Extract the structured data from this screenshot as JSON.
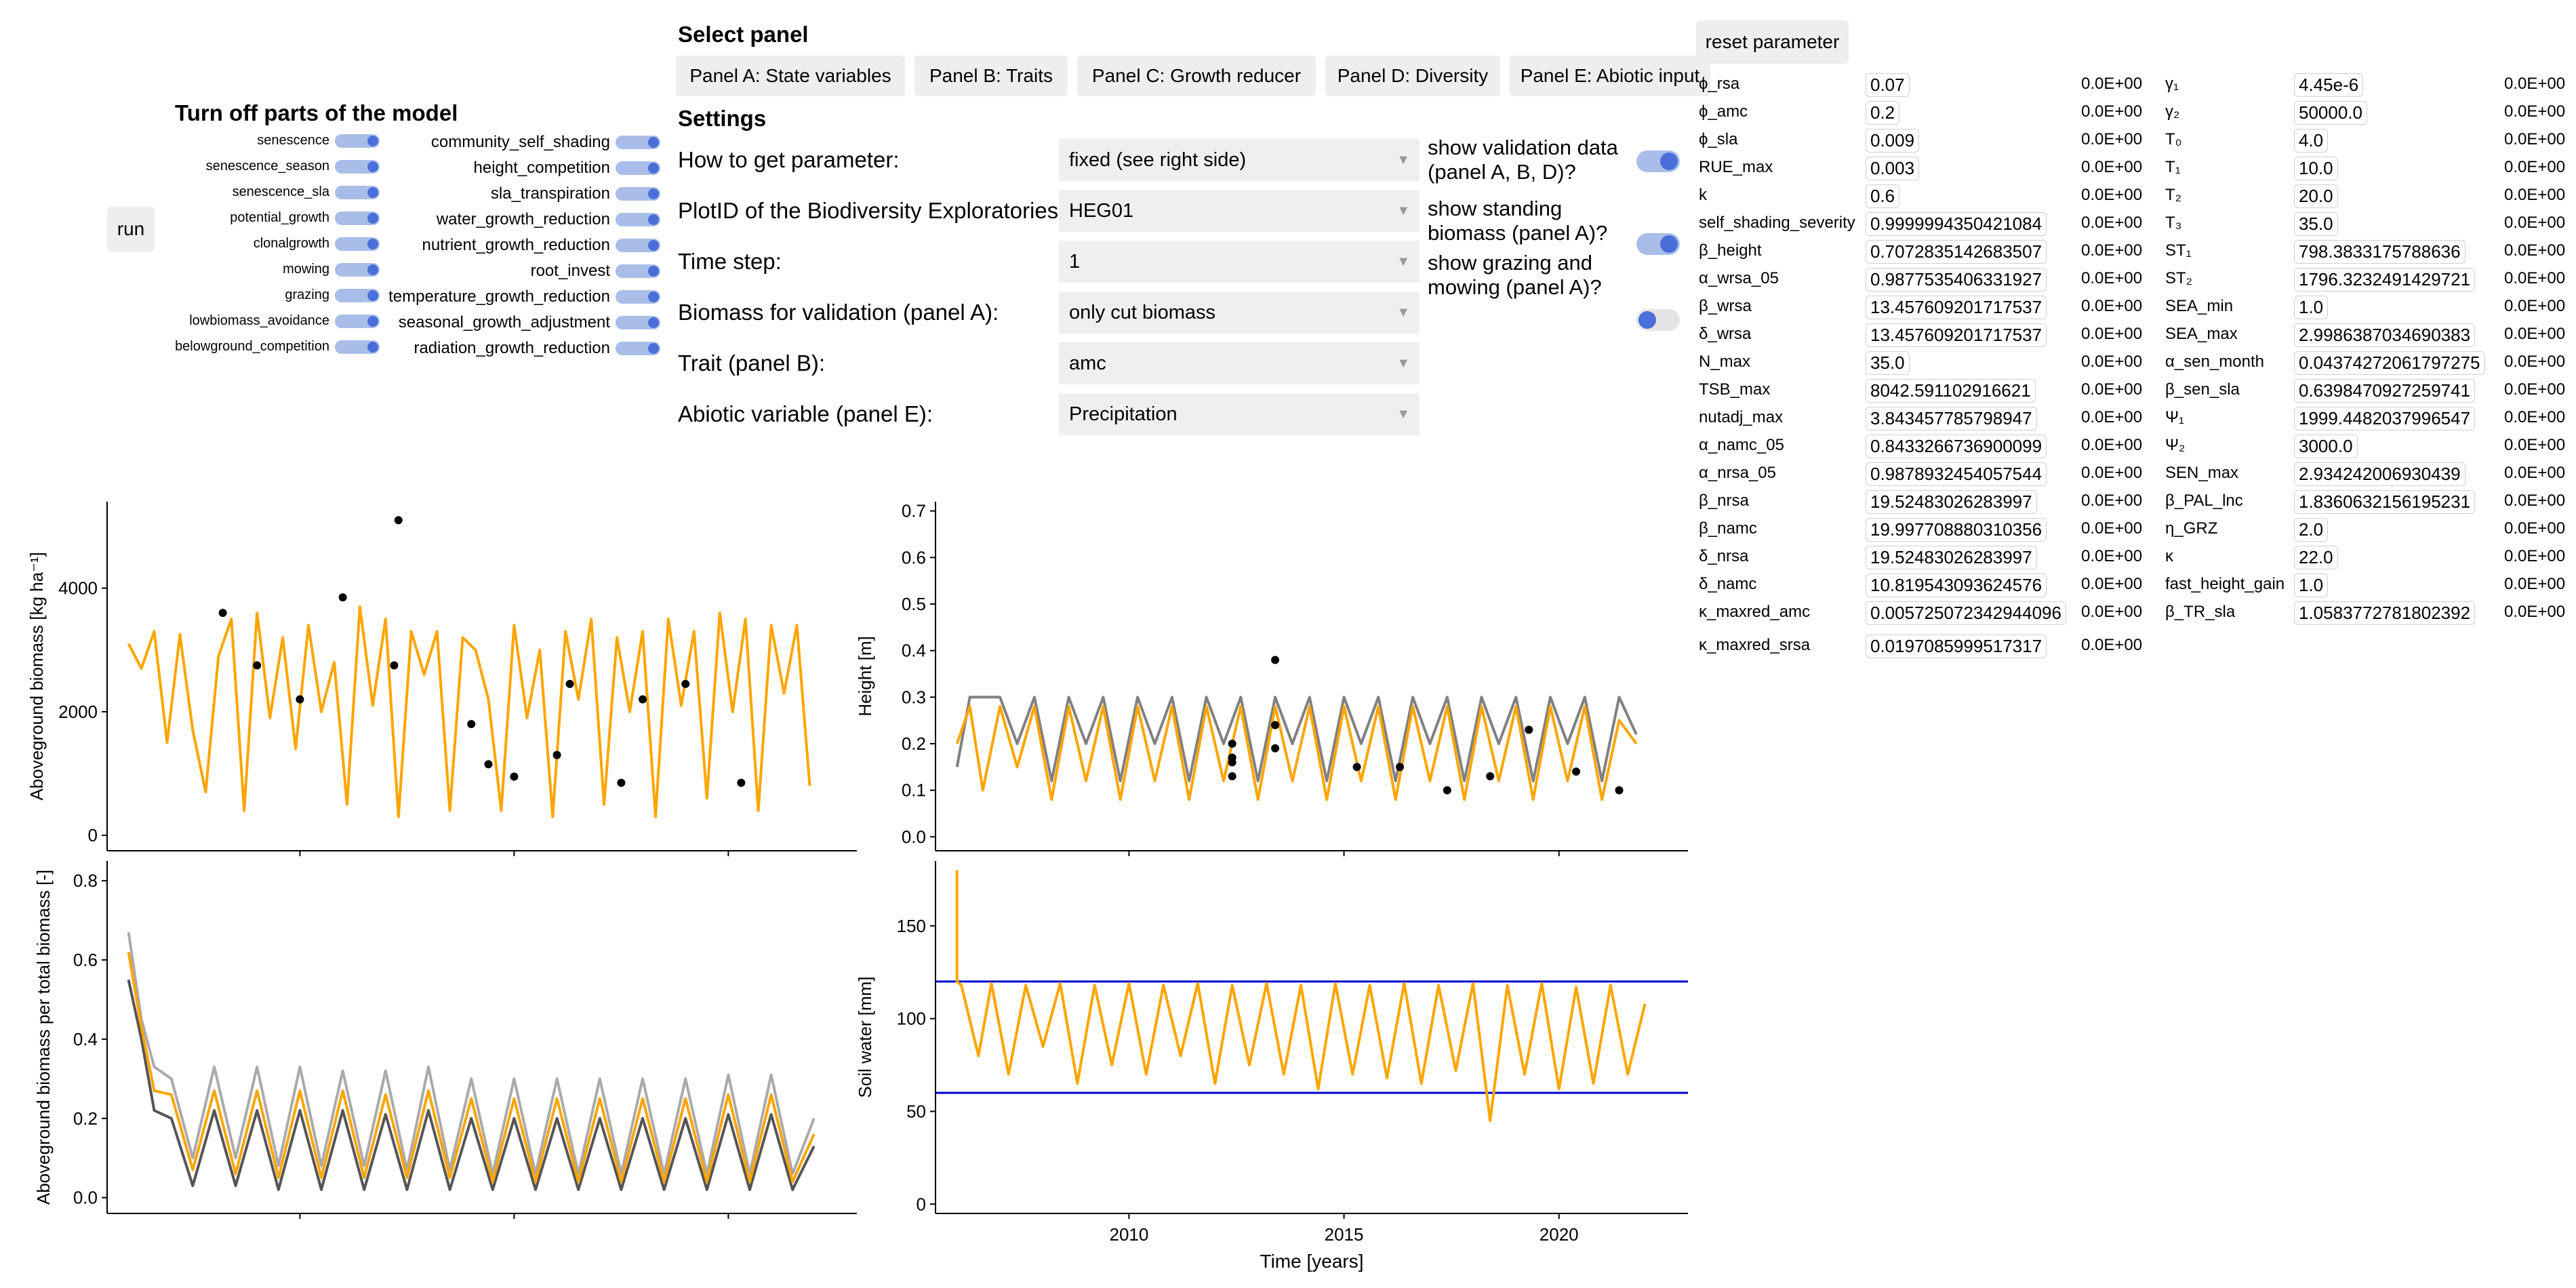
{
  "run_label": "run",
  "toggles": {
    "title": "Turn off parts of the model",
    "left": [
      "senescence",
      "senescence_season",
      "senescence_sla",
      "potential_growth",
      "clonalgrowth",
      "mowing",
      "grazing",
      "lowbiomass_avoidance",
      "belowground_competition"
    ],
    "right": [
      "community_self_shading",
      "height_competition",
      "sla_transpiration",
      "water_growth_reduction",
      "nutrient_growth_reduction",
      "root_invest",
      "temperature_growth_reduction",
      "seasonal_growth_adjustment",
      "radiation_growth_reduction"
    ]
  },
  "panel_select": {
    "title": "Select panel",
    "buttons": [
      "Panel A: State variables",
      "Panel B: Traits",
      "Panel C: Growth reducer",
      "Panel D: Diversity",
      "Panel E: Abiotic input"
    ]
  },
  "settings": {
    "title": "Settings",
    "rows": [
      {
        "label": "How to get parameter:",
        "value": "fixed (see right side)"
      },
      {
        "label": "PlotID of the Biodiversity Exploratories:",
        "value": "HEG01"
      },
      {
        "label": "Time step:",
        "value": "1"
      },
      {
        "label": "Biomass for validation (panel A):",
        "value": "only cut biomass"
      },
      {
        "label": "Trait (panel B):",
        "value": "amc"
      },
      {
        "label": "Abiotic variable (panel E):",
        "value": "Precipitation"
      }
    ],
    "switches": [
      {
        "label": "show validation data (panel A, B, D)?",
        "on": true
      },
      {
        "label": "show standing biomass (panel A)?",
        "on": true
      },
      {
        "label": "show grazing and mowing (panel A)?",
        "on": false
      }
    ]
  },
  "reset_label": "reset parameter",
  "params_left": [
    {
      "name": "ϕ_rsa",
      "value": "0.07",
      "std": "0.0E+00"
    },
    {
      "name": "ϕ_amc",
      "value": "0.2",
      "std": "0.0E+00"
    },
    {
      "name": "ϕ_sla",
      "value": "0.009",
      "std": "0.0E+00"
    },
    {
      "name": "RUE_max",
      "value": "0.003",
      "std": "0.0E+00"
    },
    {
      "name": "k",
      "value": "0.6",
      "std": "0.0E+00"
    },
    {
      "name": "self_shading_severity",
      "value": "0.9999994350421084",
      "std": "0.0E+00"
    },
    {
      "name": "β_height",
      "value": "0.7072835142683507",
      "std": "0.0E+00"
    },
    {
      "name": "α_wrsa_05",
      "value": "0.9877535406331927",
      "std": "0.0E+00"
    },
    {
      "name": "β_wrsa",
      "value": "13.457609201717537",
      "std": "0.0E+00"
    },
    {
      "name": "δ_wrsa",
      "value": "13.457609201717537",
      "std": "0.0E+00"
    },
    {
      "name": "N_max",
      "value": "35.0",
      "std": "0.0E+00"
    },
    {
      "name": "TSB_max",
      "value": "8042.591102916621",
      "std": "0.0E+00"
    },
    {
      "name": "nutadj_max",
      "value": "3.843457785798947",
      "std": "0.0E+00"
    },
    {
      "name": "α_namc_05",
      "value": "0.8433266736900099",
      "std": "0.0E+00"
    },
    {
      "name": "α_nrsa_05",
      "value": "0.9878932454057544",
      "std": "0.0E+00"
    },
    {
      "name": "β_nrsa",
      "value": "19.52483026283997",
      "std": "0.0E+00"
    },
    {
      "name": "β_namc",
      "value": "19.997708880310356",
      "std": "0.0E+00"
    },
    {
      "name": "δ_nrsa",
      "value": "19.52483026283997",
      "std": "0.0E+00"
    },
    {
      "name": "δ_namc",
      "value": "10.819543093624576",
      "std": "0.0E+00"
    },
    {
      "name": "κ_maxred_amc",
      "value": "0.005725072342944096",
      "std": "0.0E+00"
    },
    {
      "name": "κ_maxred_srsa",
      "value": "0.0197085999517317",
      "std": "0.0E+00"
    }
  ],
  "params_right": [
    {
      "name": "γ₁",
      "value": "4.45e-6",
      "std": "0.0E+00"
    },
    {
      "name": "γ₂",
      "value": "50000.0",
      "std": "0.0E+00"
    },
    {
      "name": "T₀",
      "value": "4.0",
      "std": "0.0E+00"
    },
    {
      "name": "T₁",
      "value": "10.0",
      "std": "0.0E+00"
    },
    {
      "name": "T₂",
      "value": "20.0",
      "std": "0.0E+00"
    },
    {
      "name": "T₃",
      "value": "35.0",
      "std": "0.0E+00"
    },
    {
      "name": "ST₁",
      "value": "798.3833175788636",
      "std": "0.0E+00"
    },
    {
      "name": "ST₂",
      "value": "1796.3232491429721",
      "std": "0.0E+00"
    },
    {
      "name": "SEA_min",
      "value": "1.0",
      "std": "0.0E+00"
    },
    {
      "name": "SEA_max",
      "value": "2.9986387034690383",
      "std": "0.0E+00"
    },
    {
      "name": "α_sen_month",
      "value": "0.04374272061797275",
      "std": "0.0E+00"
    },
    {
      "name": "β_sen_sla",
      "value": "0.6398470927259741",
      "std": "0.0E+00"
    },
    {
      "name": "Ψ₁",
      "value": "1999.4482037996547",
      "std": "0.0E+00"
    },
    {
      "name": "Ψ₂",
      "value": "3000.0",
      "std": "0.0E+00"
    },
    {
      "name": "SEN_max",
      "value": "2.934242006930439",
      "std": "0.0E+00"
    },
    {
      "name": "β_PAL_lnc",
      "value": "1.8360632156195231",
      "std": "0.0E+00"
    },
    {
      "name": "η_GRZ",
      "value": "2.0",
      "std": "0.0E+00"
    },
    {
      "name": "κ",
      "value": "22.0",
      "std": "0.0E+00"
    },
    {
      "name": "fast_height_gain",
      "value": "1.0",
      "std": "0.0E+00"
    },
    {
      "name": "β_TR_sla",
      "value": "1.0583772781802392",
      "std": "0.0E+00"
    }
  ],
  "chart_data": [
    {
      "type": "line",
      "title": "",
      "xlabel": "",
      "ylabel": "Aboveground biomass [kg ha⁻¹]",
      "ylim": [
        -250,
        5400
      ],
      "yticks": [
        "0",
        "2000",
        "4000"
      ],
      "xlim": [
        2005.5,
        2023.0
      ],
      "series": [
        {
          "color": "#ffa500",
          "x": [
            2006.0,
            2006.3,
            2006.6,
            2006.9,
            2007.2,
            2007.5,
            2007.8,
            2008.1,
            2008.4,
            2008.7,
            2009.0,
            2009.3,
            2009.6,
            2009.9,
            2010.2,
            2010.5,
            2010.8,
            2011.1,
            2011.4,
            2011.7,
            2012.0,
            2012.3,
            2012.6,
            2012.9,
            2013.2,
            2013.5,
            2013.8,
            2014.1,
            2014.4,
            2014.7,
            2015.0,
            2015.3,
            2015.6,
            2015.9,
            2016.2,
            2016.5,
            2016.8,
            2017.1,
            2017.4,
            2017.7,
            2018.0,
            2018.3,
            2018.6,
            2018.9,
            2019.2,
            2019.5,
            2019.8,
            2020.1,
            2020.4,
            2020.7,
            2021.0,
            2021.3,
            2021.6,
            2021.9
          ],
          "y": [
            3100,
            2700,
            3300,
            1500,
            3250,
            1700,
            700,
            2900,
            3500,
            400,
            3600,
            1900,
            3200,
            1400,
            3400,
            2000,
            2800,
            500,
            3700,
            2100,
            3500,
            300,
            3300,
            2600,
            3300,
            400,
            3200,
            3000,
            2200,
            400,
            3400,
            1900,
            3000,
            300,
            3300,
            2200,
            3500,
            500,
            3200,
            2000,
            3300,
            300,
            3500,
            2100,
            3300,
            600,
            3600,
            2000,
            3500,
            400,
            3400,
            2300,
            3400,
            800
          ]
        }
      ],
      "points": {
        "color": "#000000",
        "x": [
          2008.2,
          2009.0,
          2010.0,
          2011.0,
          2012.2,
          2012.3,
          2014.0,
          2014.4,
          2015.0,
          2016.0,
          2016.3,
          2017.5,
          2018.0,
          2019.0,
          2020.3
        ],
        "y": [
          3600,
          2750,
          2200,
          3850,
          2750,
          5100,
          1800,
          1150,
          950,
          1300,
          2450,
          850,
          2200,
          2450,
          850
        ]
      }
    },
    {
      "type": "line",
      "xlabel": "",
      "ylabel": "Height [m]",
      "ylim": [
        -0.03,
        0.72
      ],
      "yticks": [
        "0.0",
        "0.1",
        "0.2",
        "0.3",
        "0.4",
        "0.5",
        "0.6",
        "0.7"
      ],
      "xlim": [
        2005.5,
        2023.0
      ],
      "series": [
        {
          "color": "#808080",
          "x": [
            2006.0,
            2006.3,
            2006.6,
            2007.0,
            2007.4,
            2007.8,
            2008.2,
            2008.6,
            2009.0,
            2009.4,
            2009.8,
            2010.2,
            2010.6,
            2011.0,
            2011.4,
            2011.8,
            2012.2,
            2012.6,
            2013.0,
            2013.4,
            2013.8,
            2014.2,
            2014.6,
            2015.0,
            2015.4,
            2015.8,
            2016.2,
            2016.6,
            2017.0,
            2017.4,
            2017.8,
            2018.2,
            2018.6,
            2019.0,
            2019.4,
            2019.8,
            2020.2,
            2020.6,
            2021.0,
            2021.4,
            2021.8
          ],
          "y": [
            0.15,
            0.3,
            0.3,
            0.3,
            0.2,
            0.3,
            0.12,
            0.3,
            0.2,
            0.3,
            0.12,
            0.3,
            0.2,
            0.3,
            0.12,
            0.3,
            0.2,
            0.3,
            0.12,
            0.3,
            0.2,
            0.3,
            0.12,
            0.3,
            0.2,
            0.3,
            0.12,
            0.3,
            0.2,
            0.3,
            0.12,
            0.3,
            0.2,
            0.3,
            0.12,
            0.3,
            0.2,
            0.3,
            0.12,
            0.3,
            0.22
          ]
        },
        {
          "color": "#ffa500",
          "x": [
            2006.0,
            2006.3,
            2006.6,
            2007.0,
            2007.4,
            2007.8,
            2008.2,
            2008.6,
            2009.0,
            2009.4,
            2009.8,
            2010.2,
            2010.6,
            2011.0,
            2011.4,
            2011.8,
            2012.2,
            2012.6,
            2013.0,
            2013.4,
            2013.8,
            2014.2,
            2014.6,
            2015.0,
            2015.4,
            2015.8,
            2016.2,
            2016.6,
            2017.0,
            2017.4,
            2017.8,
            2018.2,
            2018.6,
            2019.0,
            2019.4,
            2019.8,
            2020.2,
            2020.6,
            2021.0,
            2021.4,
            2021.8
          ],
          "y": [
            0.2,
            0.28,
            0.1,
            0.28,
            0.15,
            0.28,
            0.08,
            0.28,
            0.12,
            0.28,
            0.08,
            0.28,
            0.12,
            0.28,
            0.08,
            0.28,
            0.12,
            0.28,
            0.08,
            0.28,
            0.12,
            0.28,
            0.08,
            0.28,
            0.12,
            0.28,
            0.08,
            0.28,
            0.12,
            0.28,
            0.08,
            0.28,
            0.12,
            0.28,
            0.08,
            0.28,
            0.12,
            0.28,
            0.08,
            0.25,
            0.2
          ]
        }
      ],
      "points": {
        "color": "#000000",
        "x": [
          2012.4,
          2012.4,
          2012.4,
          2012.4,
          2013.4,
          2013.4,
          2013.4,
          2015.3,
          2016.3,
          2017.4,
          2018.4,
          2019.3,
          2020.4,
          2021.4
        ],
        "y": [
          0.2,
          0.17,
          0.16,
          0.13,
          0.38,
          0.24,
          0.19,
          0.15,
          0.15,
          0.1,
          0.13,
          0.23,
          0.14,
          0.1
        ]
      }
    },
    {
      "type": "line",
      "xlabel": "",
      "ylabel": "Aboveground biomass per total biomass [-]",
      "ylim": [
        -0.04,
        0.85
      ],
      "yticks": [
        "0.0",
        "0.2",
        "0.4",
        "0.6",
        "0.8"
      ],
      "xlim": [
        2005.5,
        2023.0
      ],
      "series": [
        {
          "color": "#aaaaaa",
          "x": [
            2006.0,
            2006.3,
            2006.6,
            2007.0,
            2007.5,
            2008.0,
            2008.5,
            2009.0,
            2009.5,
            2010.0,
            2010.5,
            2011.0,
            2011.5,
            2012.0,
            2012.5,
            2013.0,
            2013.5,
            2014.0,
            2014.5,
            2015.0,
            2015.5,
            2016.0,
            2016.5,
            2017.0,
            2017.5,
            2018.0,
            2018.5,
            2019.0,
            2019.5,
            2020.0,
            2020.5,
            2021.0,
            2021.5,
            2022.0
          ],
          "y": [
            0.67,
            0.45,
            0.33,
            0.3,
            0.1,
            0.33,
            0.1,
            0.33,
            0.08,
            0.33,
            0.08,
            0.32,
            0.08,
            0.32,
            0.07,
            0.33,
            0.07,
            0.3,
            0.06,
            0.3,
            0.06,
            0.3,
            0.06,
            0.3,
            0.06,
            0.3,
            0.06,
            0.3,
            0.06,
            0.31,
            0.06,
            0.31,
            0.06,
            0.2
          ]
        },
        {
          "color": "#555555",
          "x": [
            2006.0,
            2006.3,
            2006.6,
            2007.0,
            2007.5,
            2008.0,
            2008.5,
            2009.0,
            2009.5,
            2010.0,
            2010.5,
            2011.0,
            2011.5,
            2012.0,
            2012.5,
            2013.0,
            2013.5,
            2014.0,
            2014.5,
            2015.0,
            2015.5,
            2016.0,
            2016.5,
            2017.0,
            2017.5,
            2018.0,
            2018.5,
            2019.0,
            2019.5,
            2020.0,
            2020.5,
            2021.0,
            2021.5,
            2022.0
          ],
          "y": [
            0.55,
            0.4,
            0.22,
            0.2,
            0.03,
            0.22,
            0.03,
            0.22,
            0.02,
            0.22,
            0.02,
            0.22,
            0.02,
            0.21,
            0.02,
            0.22,
            0.02,
            0.2,
            0.02,
            0.2,
            0.02,
            0.2,
            0.02,
            0.2,
            0.02,
            0.2,
            0.02,
            0.2,
            0.02,
            0.21,
            0.02,
            0.21,
            0.02,
            0.13
          ]
        },
        {
          "color": "#ffa500",
          "x": [
            2006.0,
            2006.3,
            2006.6,
            2007.0,
            2007.5,
            2008.0,
            2008.5,
            2009.0,
            2009.5,
            2010.0,
            2010.5,
            2011.0,
            2011.5,
            2012.0,
            2012.5,
            2013.0,
            2013.5,
            2014.0,
            2014.5,
            2015.0,
            2015.5,
            2016.0,
            2016.5,
            2017.0,
            2017.5,
            2018.0,
            2018.5,
            2019.0,
            2019.5,
            2020.0,
            2020.5,
            2021.0,
            2021.5,
            2022.0
          ],
          "y": [
            0.62,
            0.43,
            0.27,
            0.26,
            0.07,
            0.27,
            0.06,
            0.27,
            0.05,
            0.27,
            0.05,
            0.27,
            0.05,
            0.26,
            0.05,
            0.27,
            0.05,
            0.25,
            0.04,
            0.25,
            0.04,
            0.25,
            0.04,
            0.25,
            0.04,
            0.25,
            0.04,
            0.25,
            0.04,
            0.26,
            0.04,
            0.26,
            0.04,
            0.16
          ]
        }
      ]
    },
    {
      "type": "line",
      "xlabel": "Time [years]",
      "ylabel": "Soil water [mm]",
      "ylim": [
        -5,
        185
      ],
      "yticks": [
        "0",
        "50",
        "100",
        "150"
      ],
      "xlim": [
        2005.5,
        2023.0
      ],
      "xticks": [
        "2010",
        "2015",
        "2020"
      ],
      "xtick_values": [
        2010,
        2015,
        2020
      ],
      "hlines": [
        {
          "y": 120,
          "color": "#0000cc"
        },
        {
          "y": 60,
          "color": "#0000cc"
        }
      ],
      "series": [
        {
          "color": "#ffa500",
          "x": [
            2006.0,
            2006.0,
            2006.1,
            2006.5,
            2006.8,
            2007.2,
            2007.6,
            2008.0,
            2008.4,
            2008.8,
            2009.2,
            2009.6,
            2010.0,
            2010.4,
            2010.8,
            2011.2,
            2011.6,
            2012.0,
            2012.4,
            2012.8,
            2013.2,
            2013.6,
            2014.0,
            2014.4,
            2014.8,
            2015.2,
            2015.6,
            2016.0,
            2016.4,
            2016.8,
            2017.2,
            2017.6,
            2018.0,
            2018.4,
            2018.8,
            2019.2,
            2019.6,
            2020.0,
            2020.4,
            2020.8,
            2021.2,
            2021.6,
            2022.0
          ],
          "y": [
            180,
            120,
            118,
            80,
            119,
            70,
            118,
            85,
            119,
            65,
            118,
            75,
            119,
            70,
            118,
            80,
            119,
            65,
            118,
            75,
            119,
            70,
            118,
            62,
            119,
            70,
            118,
            68,
            119,
            65,
            118,
            72,
            119,
            45,
            118,
            70,
            119,
            62,
            117,
            65,
            118,
            70,
            108
          ]
        }
      ]
    }
  ]
}
